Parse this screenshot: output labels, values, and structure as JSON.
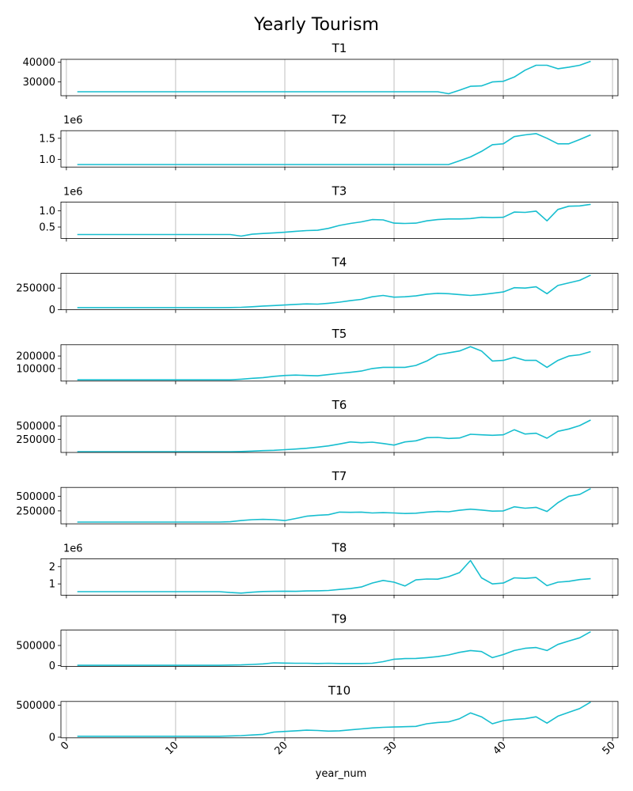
{
  "chart_data": {
    "type": "line",
    "title": "Yearly Tourism",
    "xlabel": "year_num",
    "color": "#17becf",
    "grid_x": true,
    "xlim": [
      -0.5,
      50.5
    ],
    "x_ticks": [
      0,
      10,
      20,
      30,
      40,
      50
    ],
    "x": [
      1,
      2,
      3,
      4,
      5,
      6,
      7,
      8,
      9,
      10,
      11,
      12,
      13,
      14,
      15,
      16,
      17,
      18,
      19,
      20,
      21,
      22,
      23,
      24,
      25,
      26,
      27,
      28,
      29,
      30,
      31,
      32,
      33,
      34,
      35,
      36,
      37,
      38,
      39,
      40,
      41,
      42,
      43,
      44,
      45,
      46,
      47,
      48
    ],
    "subplots": [
      {
        "title": "T1",
        "offset_text": "",
        "ylim": [
          23000,
          41500
        ],
        "y_ticks": [
          30000,
          40000
        ],
        "y_tick_labels": [
          "30000",
          "40000"
        ],
        "values": [
          25000,
          25000,
          25000,
          25000,
          25000,
          25000,
          25000,
          25000,
          25000,
          25000,
          25000,
          25000,
          25000,
          25000,
          25000,
          25000,
          25000,
          25000,
          25000,
          25000,
          25000,
          25000,
          25000,
          25000,
          25000,
          25000,
          25000,
          25000,
          25000,
          25000,
          25000,
          25000,
          25000,
          25000,
          24000,
          25800,
          27800,
          28000,
          30000,
          30300,
          32500,
          36000,
          38500,
          38500,
          36700,
          37500,
          38500,
          40500
        ]
      },
      {
        "title": "T2",
        "offset_text": "1e6",
        "ylim": [
          820000,
          1680000
        ],
        "y_ticks": [
          1000000,
          1500000
        ],
        "y_tick_labels": [
          "1.0",
          "1.5"
        ],
        "values": [
          880000,
          880000,
          880000,
          880000,
          880000,
          880000,
          880000,
          880000,
          880000,
          880000,
          880000,
          880000,
          880000,
          880000,
          880000,
          880000,
          880000,
          880000,
          880000,
          880000,
          880000,
          880000,
          880000,
          880000,
          880000,
          880000,
          880000,
          880000,
          880000,
          880000,
          880000,
          880000,
          880000,
          880000,
          880000,
          970000,
          1060000,
          1190000,
          1350000,
          1370000,
          1540000,
          1580000,
          1610000,
          1500000,
          1370000,
          1370000,
          1470000,
          1580000
        ]
      },
      {
        "title": "T3",
        "offset_text": "1e6",
        "ylim": [
          150000,
          1270000
        ],
        "y_ticks": [
          500000,
          1000000
        ],
        "y_tick_labels": [
          "0.5",
          "1.0"
        ],
        "values": [
          270000,
          270000,
          270000,
          270000,
          270000,
          270000,
          270000,
          270000,
          270000,
          270000,
          270000,
          270000,
          270000,
          270000,
          270000,
          220000,
          280000,
          300000,
          320000,
          340000,
          370000,
          390000,
          400000,
          460000,
          550000,
          610000,
          660000,
          730000,
          720000,
          620000,
          610000,
          620000,
          690000,
          730000,
          750000,
          750000,
          760000,
          800000,
          790000,
          800000,
          960000,
          950000,
          990000,
          690000,
          1040000,
          1140000,
          1150000,
          1200000
        ]
      },
      {
        "title": "T4",
        "offset_text": "",
        "ylim": [
          0,
          420000
        ],
        "y_ticks": [
          0,
          250000
        ],
        "y_tick_labels": [
          "0",
          "250000"
        ],
        "values": [
          25000,
          25000,
          25000,
          25000,
          25000,
          25000,
          25000,
          25000,
          25000,
          25000,
          25000,
          25000,
          25000,
          25000,
          26000,
          28000,
          35000,
          43000,
          48000,
          55000,
          62000,
          68000,
          65000,
          75000,
          88000,
          105000,
          120000,
          150000,
          165000,
          145000,
          150000,
          160000,
          180000,
          190000,
          185000,
          175000,
          165000,
          175000,
          190000,
          205000,
          255000,
          250000,
          265000,
          185000,
          280000,
          310000,
          340000,
          400000
        ]
      },
      {
        "title": "T5",
        "offset_text": "",
        "ylim": [
          0,
          290000
        ],
        "y_ticks": [
          100000,
          200000
        ],
        "y_tick_labels": [
          "100000",
          "200000"
        ],
        "values": [
          10000,
          10000,
          10000,
          10000,
          10000,
          10000,
          10000,
          10000,
          10000,
          10000,
          10000,
          10000,
          10000,
          10000,
          10000,
          15000,
          22000,
          28000,
          38000,
          45000,
          48000,
          45000,
          42000,
          52000,
          62000,
          70000,
          80000,
          100000,
          110000,
          110000,
          110000,
          125000,
          160000,
          210000,
          225000,
          240000,
          275000,
          240000,
          160000,
          165000,
          190000,
          165000,
          165000,
          110000,
          165000,
          200000,
          210000,
          235000
        ]
      },
      {
        "title": "T6",
        "offset_text": "",
        "ylim": [
          0,
          690000
        ],
        "y_ticks": [
          250000,
          500000
        ],
        "y_tick_labels": [
          "250000",
          "500000"
        ],
        "values": [
          15000,
          15000,
          15000,
          15000,
          15000,
          15000,
          15000,
          15000,
          15000,
          15000,
          15000,
          15000,
          15000,
          15000,
          15000,
          18000,
          25000,
          35000,
          40000,
          52000,
          65000,
          80000,
          100000,
          125000,
          160000,
          200000,
          185000,
          195000,
          170000,
          140000,
          200000,
          220000,
          280000,
          285000,
          265000,
          275000,
          345000,
          335000,
          325000,
          335000,
          430000,
          350000,
          365000,
          270000,
          400000,
          445000,
          510000,
          615000
        ]
      },
      {
        "title": "T7",
        "offset_text": "",
        "ylim": [
          30000,
          650000
        ],
        "y_ticks": [
          250000,
          500000
        ],
        "y_tick_labels": [
          "250000",
          "500000"
        ],
        "values": [
          60000,
          60000,
          60000,
          60000,
          60000,
          60000,
          60000,
          60000,
          60000,
          60000,
          60000,
          60000,
          60000,
          60000,
          65000,
          85000,
          100000,
          105000,
          100000,
          85000,
          120000,
          160000,
          175000,
          185000,
          230000,
          225000,
          230000,
          215000,
          220000,
          215000,
          205000,
          210000,
          230000,
          240000,
          235000,
          260000,
          280000,
          265000,
          245000,
          250000,
          320000,
          295000,
          310000,
          240000,
          390000,
          500000,
          530000,
          630000
        ]
      },
      {
        "title": "T8",
        "offset_text": "1e6",
        "ylim": [
          350000,
          2450000
        ],
        "y_ticks": [
          1000000,
          2000000
        ],
        "y_tick_labels": [
          "1",
          "2"
        ],
        "values": [
          550000,
          550000,
          550000,
          550000,
          550000,
          550000,
          550000,
          550000,
          550000,
          550000,
          550000,
          550000,
          550000,
          550000,
          500000,
          470000,
          520000,
          560000,
          570000,
          580000,
          570000,
          590000,
          600000,
          620000,
          680000,
          730000,
          820000,
          1050000,
          1200000,
          1100000,
          880000,
          1230000,
          1280000,
          1270000,
          1420000,
          1650000,
          2350000,
          1350000,
          1000000,
          1050000,
          1350000,
          1320000,
          1370000,
          900000,
          1100000,
          1150000,
          1250000,
          1300000
        ]
      },
      {
        "title": "T9",
        "offset_text": "",
        "ylim": [
          -20000,
          880000
        ],
        "y_ticks": [
          0,
          500000
        ],
        "y_tick_labels": [
          "0",
          "500000"
        ],
        "values": [
          10000,
          10000,
          10000,
          10000,
          10000,
          10000,
          10000,
          10000,
          10000,
          10000,
          10000,
          10000,
          10000,
          10000,
          15000,
          20000,
          30000,
          45000,
          70000,
          65000,
          60000,
          60000,
          55000,
          60000,
          55000,
          55000,
          55000,
          60000,
          100000,
          160000,
          175000,
          180000,
          200000,
          225000,
          265000,
          330000,
          375000,
          350000,
          200000,
          275000,
          375000,
          430000,
          450000,
          375000,
          525000,
          610000,
          690000,
          840000
        ]
      },
      {
        "title": "T10",
        "offset_text": "",
        "ylim": [
          -10000,
          560000
        ],
        "y_ticks": [
          0,
          500000
        ],
        "y_tick_labels": [
          "0",
          "500000"
        ],
        "values": [
          15000,
          15000,
          15000,
          15000,
          15000,
          15000,
          15000,
          15000,
          15000,
          15000,
          15000,
          15000,
          15000,
          15000,
          20000,
          25000,
          35000,
          45000,
          80000,
          90000,
          100000,
          110000,
          105000,
          95000,
          100000,
          115000,
          130000,
          145000,
          155000,
          160000,
          165000,
          170000,
          210000,
          230000,
          240000,
          290000,
          380000,
          320000,
          210000,
          260000,
          280000,
          290000,
          320000,
          220000,
          330000,
          390000,
          450000,
          550000
        ]
      }
    ]
  }
}
